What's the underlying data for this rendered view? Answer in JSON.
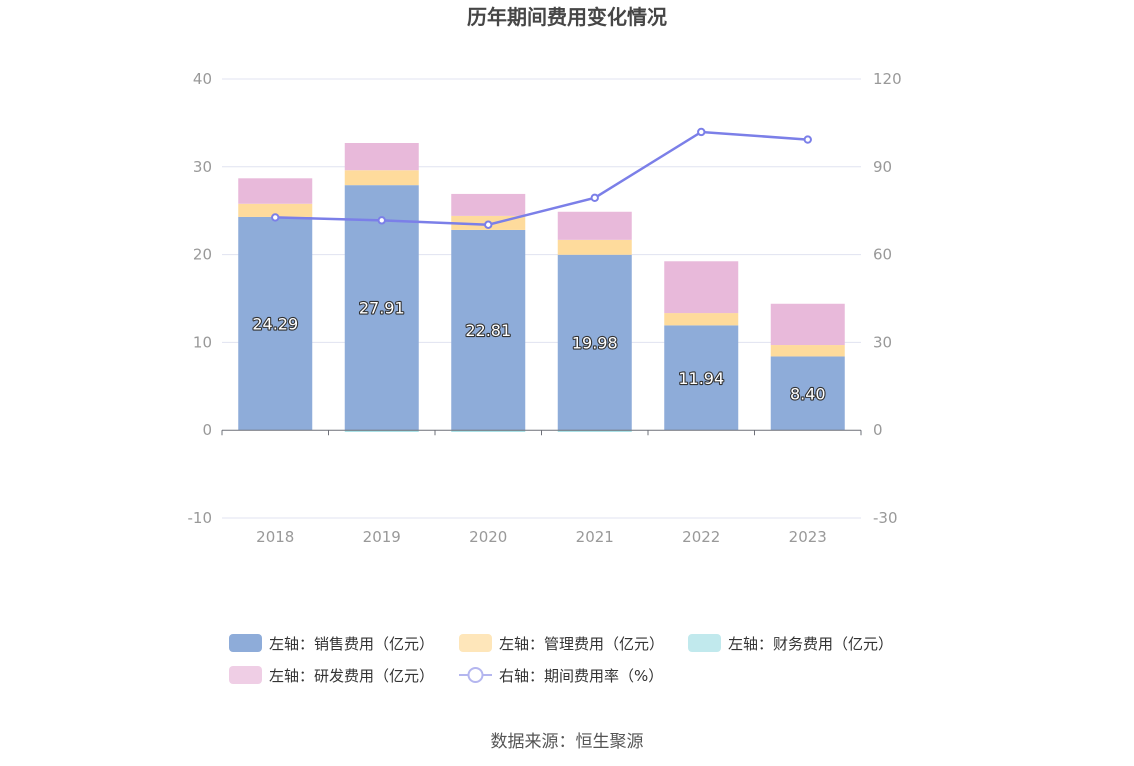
{
  "chart_data": {
    "type": "bar",
    "title": "历年期间费用变化情况",
    "categories": [
      "2018",
      "2019",
      "2020",
      "2021",
      "2022",
      "2023"
    ],
    "stacked": true,
    "left_axis": {
      "ylim": [
        -10,
        40
      ],
      "ticks": [
        "-10",
        "0",
        "10",
        "20",
        "30",
        "40"
      ]
    },
    "right_axis": {
      "ylim": [
        -30,
        120
      ],
      "ticks": [
        "-30",
        "0",
        "30",
        "60",
        "90",
        "120"
      ]
    },
    "series": [
      {
        "name": "左轴：销售费用（亿元）",
        "axis": "left",
        "type": "bar",
        "color": "#8eacd9",
        "values": [
          24.29,
          27.91,
          22.81,
          19.98,
          11.94,
          8.4
        ],
        "labels": [
          "24.29",
          "27.91",
          "22.81",
          "19.98",
          "11.94",
          "8.40"
        ]
      },
      {
        "name": "左轴：管理费用（亿元）",
        "axis": "left",
        "type": "bar",
        "color": "#fedb9c",
        "values": [
          1.5,
          1.7,
          1.6,
          1.7,
          1.4,
          1.3
        ]
      },
      {
        "name": "左轴：财务费用（亿元）",
        "axis": "left",
        "type": "bar",
        "color": "#a6e0e6",
        "values": [
          0.0,
          -0.2,
          -0.2,
          -0.2,
          0.0,
          0.0
        ]
      },
      {
        "name": "左轴：研发费用（亿元）",
        "axis": "left",
        "type": "bar",
        "color": "#e8b9da",
        "values": [
          2.9,
          3.1,
          2.5,
          3.2,
          5.9,
          4.7
        ]
      },
      {
        "name": "右轴：期间费用率（%）",
        "axis": "right",
        "type": "line",
        "color": "#7b7fe8",
        "values": [
          72.7,
          71.7,
          70.2,
          79.4,
          101.9,
          99.3
        ]
      }
    ],
    "grid": true,
    "legend_position": "bottom"
  },
  "source": "数据来源：恒生聚源"
}
